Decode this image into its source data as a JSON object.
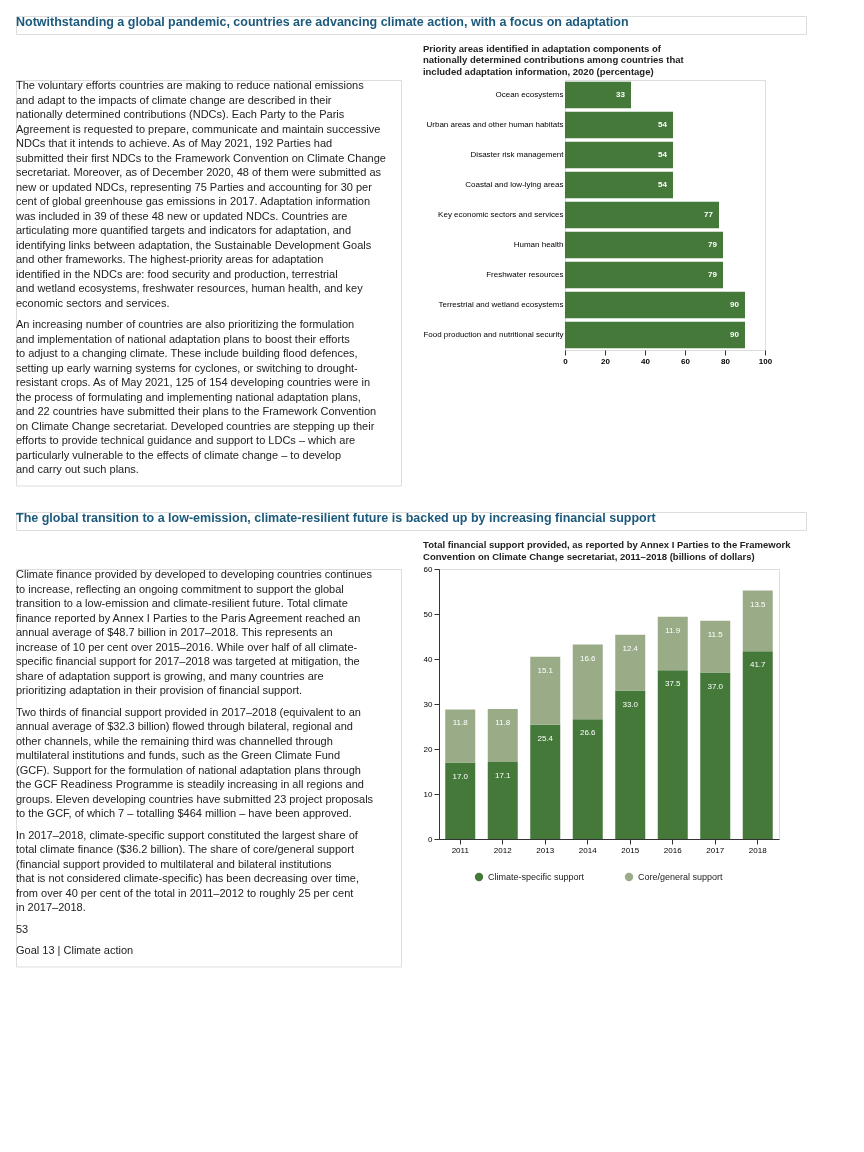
{
  "chart_data": [
    {
      "type": "bar",
      "orientation": "horizontal",
      "title": "Priority areas identified in adaptation components of nationally determined contributions among countries that included adaptation information, 2020 (percentage)",
      "categories": [
        "Ocean ecosystems",
        "Urban areas and other human habitats",
        "Disaster risk management",
        "Coastal and low-lying areas",
        "Key economic sectors and services",
        "Human health",
        "Freshwater resources",
        "Terrestrial and wetland ecosystems",
        "Food production and nutritional security"
      ],
      "values": [
        33,
        54,
        54,
        54,
        77,
        79,
        79,
        90,
        90
      ],
      "color": "#44793a",
      "xlim": [
        0,
        100
      ],
      "xticks": [
        0,
        20,
        40,
        60,
        80,
        100
      ],
      "data_labels": true,
      "grid": false,
      "annotations": [
        "Notwithstanding a global pandemic, countries are advancing climate action, with a focus on adaptation",
        "The voluntary efforts countries are making to reduce national emissions and adapt to the impacts of climate change are described in their nationally determined contributions (NDCs). Each Party to the Paris Agreement is requested to prepare, communicate and maintain successive NDCs that it intends to achieve. As of May 2021, 192 Parties had submitted their first NDCs to the Framework Convention on Climate Change secretariat. Moreover, as of December 2020, 48 of them were submitted as new or updated NDCs, representing 75 Parties and accounting for 30 per cent of global greenhouse gas emissions in 2017. Adaptation information was included in 39 of these 48 new or updated NDCs. Countries are articulating more quantified targets and indicators for adaptation, and identifying links between adaptation, the Sustainable Development Goals and other frameworks. The highest-priority areas for adaptation identified in the NDCs are: food security and production, terrestrial and wetland ecosystems, freshwater resources, human health, and key economic sectors and services.",
        "An increasing number of countries are also prioritizing the formulation and implementation of national adaptation plans to boost their efforts to adjust to a changing climate. These include building flood defences, setting up early warning systems for cyclones, or switching to drought-resistant crops. As of May 2021, 125 of 154 developing countries were in the process of formulating and implementing national adaptation plans, and 22 countries have submitted their plans to the Framework Convention on Climate Change secretariat. Developed countries are stepping up their efforts to provide technical guidance and support to LDCs – which are particularly vulnerable to the effects of climate change – to develop and carry out such plans."
      ]
    },
    {
      "type": "bar",
      "stacked": true,
      "title": "Total financial support provided, as reported by Annex I Parties to the Framework Convention on Climate Change secretariat, 2011–2018 (billions of dollars)",
      "categories": [
        "2011",
        "2012",
        "2013",
        "2014",
        "2015",
        "2016",
        "2017",
        "2018"
      ],
      "series": [
        {
          "name": "Climate-specific support",
          "color": "#44793a",
          "values": [
            17.0,
            17.1,
            25.4,
            26.6,
            33.0,
            37.5,
            37.0,
            41.7
          ],
          "value_labels": [
            "17.0",
            "17.1",
            "25.4",
            "26.6",
            "33.0",
            "37.5",
            "37.0",
            "41.7"
          ]
        },
        {
          "name": "Core/general support",
          "color": "#9aab88",
          "values": [
            11.8,
            11.8,
            15.1,
            16.6,
            12.4,
            11.9,
            11.5,
            13.5
          ],
          "value_labels": [
            "11.8",
            "11.8",
            "15.1",
            "16.6",
            "12.4",
            "11.9",
            "11.5",
            "13.5"
          ]
        }
      ],
      "ylim": [
        0,
        60
      ],
      "yticks": [
        0,
        10,
        20,
        30,
        40,
        50,
        60
      ],
      "legend": "bottom",
      "grid": false,
      "annotations": [
        "The global transition to a low-emission, climate-resilient future is backed up by increasing financial support",
        "Climate finance provided by developed to developing countries continues to increase, reflecting an ongoing commitment to support the global transition to a low-emission and climate-resilient future. Total climate finance reported by Annex I Parties to the Paris Agreement reached an annual average of $48.7 billion in 2017–2018. This represents an increase of 10 per cent over 2015–2016. While over half of all climate-specific financial support for 2017–2018 was targeted at mitigation, the share of adaptation support is growing, and many countries are prioritizing adaptation in their provision of financial support.",
        "Two thirds of financial support provided in 2017–2018 (equivalent to an annual average of $32.3 billion) flowed through bilateral, regional and other channels, while the remaining third was channelled through multilateral institutions and funds, such as the Green Climate Fund (GCF). Support for the formulation of national adaptation plans through the GCF Readiness Programme is steadily increasing in all regions and groups. Eleven developing countries have submitted 23 project proposals to the GCF, of which 7 – totalling $464 million – have been approved.",
        "In 2017–2018, climate-specific support constituted the largest share of total climate finance ($36.2 billion). The share of core/general support (financial support provided to multilateral and bilateral institutions that is not considered climate-specific) has been decreasing over time, from over 40 per cent of the total in 2011–2012 to roughly 25 per cent in 2017–2018.",
        "53",
        "Goal 13 | Climate action"
      ]
    }
  ]
}
